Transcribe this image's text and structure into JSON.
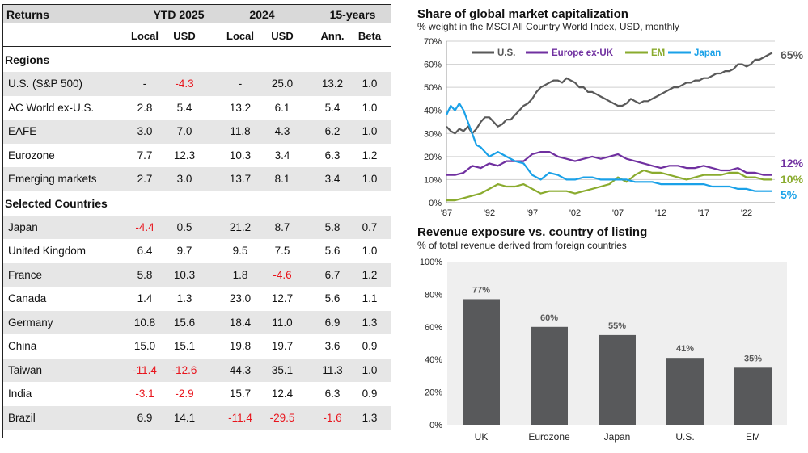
{
  "returns_table": {
    "header_title": "Returns",
    "groups": [
      "YTD 2025",
      "2024",
      "15-years"
    ],
    "subheaders": [
      "Local",
      "USD",
      "Local",
      "USD",
      "Ann.",
      "Beta"
    ],
    "sections": [
      {
        "title": "Regions",
        "rows": [
          {
            "name": "U.S. (S&P 500)",
            "values": [
              "-",
              "-4.3",
              "-",
              "25.0",
              "13.2",
              "1.0"
            ]
          },
          {
            "name": "AC World ex-U.S.",
            "values": [
              "2.8",
              "5.4",
              "13.2",
              "6.1",
              "5.4",
              "1.0"
            ]
          },
          {
            "name": "EAFE",
            "values": [
              "3.0",
              "7.0",
              "11.8",
              "4.3",
              "6.2",
              "1.0"
            ]
          },
          {
            "name": "Eurozone",
            "values": [
              "7.7",
              "12.3",
              "10.3",
              "3.4",
              "6.3",
              "1.2"
            ]
          },
          {
            "name": "Emerging markets",
            "values": [
              "2.7",
              "3.0",
              "13.7",
              "8.1",
              "3.4",
              "1.0"
            ]
          }
        ]
      },
      {
        "title": "Selected Countries",
        "rows": [
          {
            "name": "Japan",
            "values": [
              "-4.4",
              "0.5",
              "21.2",
              "8.7",
              "5.8",
              "0.7"
            ]
          },
          {
            "name": "United Kingdom",
            "values": [
              "6.4",
              "9.7",
              "9.5",
              "7.5",
              "5.6",
              "1.0"
            ]
          },
          {
            "name": "France",
            "values": [
              "5.8",
              "10.3",
              "1.8",
              "-4.6",
              "6.7",
              "1.2"
            ]
          },
          {
            "name": "Canada",
            "values": [
              "1.4",
              "1.3",
              "23.0",
              "12.7",
              "5.6",
              "1.1"
            ]
          },
          {
            "name": "Germany",
            "values": [
              "10.8",
              "15.6",
              "18.4",
              "11.0",
              "6.9",
              "1.3"
            ]
          },
          {
            "name": "China",
            "values": [
              "15.0",
              "15.1",
              "19.8",
              "19.7",
              "3.6",
              "0.9"
            ]
          },
          {
            "name": "Taiwan",
            "values": [
              "-11.4",
              "-12.6",
              "44.3",
              "35.1",
              "11.3",
              "1.0"
            ]
          },
          {
            "name": "India",
            "values": [
              "-3.1",
              "-2.9",
              "15.7",
              "12.4",
              "6.3",
              "0.9"
            ]
          },
          {
            "name": "Brazil",
            "values": [
              "6.9",
              "14.1",
              "-11.4",
              "-29.5",
              "-1.6",
              "1.3"
            ]
          }
        ]
      }
    ],
    "negative_color": "#e8141c",
    "shade_color": "#e6e6e6"
  },
  "chart_data": [
    {
      "type": "line",
      "title": "Share of global market capitalization",
      "subtitle": "% weight in the MSCI All Country World Index, USD, monthly",
      "x_tick_labels": [
        "'87",
        "'92",
        "'97",
        "'02",
        "'07",
        "'12",
        "'17",
        "'22"
      ],
      "x_ticks": [
        1987,
        1992,
        1997,
        2002,
        2007,
        2012,
        2017,
        2022
      ],
      "xlim": [
        1987,
        2025.3
      ],
      "ylim": [
        0,
        70
      ],
      "y_ticks": [
        0,
        10,
        20,
        30,
        40,
        50,
        60,
        70
      ],
      "y_tick_labels": [
        "0%",
        "10%",
        "20%",
        "30%",
        "40%",
        "50%",
        "60%",
        "70%"
      ],
      "grid": true,
      "legend_position": "top",
      "series": [
        {
          "name": "U.S.",
          "color": "#595959",
          "end_label": "65%",
          "x": [
            1987,
            1987.5,
            1988,
            1988.5,
            1989,
            1989.5,
            1990,
            1990.5,
            1991,
            1991.5,
            1992,
            1992.5,
            1993,
            1993.5,
            1994,
            1994.5,
            1995,
            1995.5,
            1996,
            1996.5,
            1997,
            1997.5,
            1998,
            1998.5,
            1999,
            1999.5,
            2000,
            2000.5,
            2001,
            2001.5,
            2002,
            2002.5,
            2003,
            2003.5,
            2004,
            2004.5,
            2005,
            2005.5,
            2006,
            2006.5,
            2007,
            2007.5,
            2008,
            2008.5,
            2009,
            2009.5,
            2010,
            2010.5,
            2011,
            2011.5,
            2012,
            2012.5,
            2013,
            2013.5,
            2014,
            2014.5,
            2015,
            2015.5,
            2016,
            2016.5,
            2017,
            2017.5,
            2018,
            2018.5,
            2019,
            2019.5,
            2020,
            2020.5,
            2021,
            2021.5,
            2022,
            2022.5,
            2023,
            2023.5,
            2024,
            2024.5,
            2025
          ],
          "y": [
            33,
            31,
            30,
            32,
            31,
            33,
            30,
            32,
            35,
            37,
            37,
            35,
            33,
            34,
            36,
            36,
            38,
            40,
            42,
            43,
            45,
            48,
            50,
            51,
            52,
            53,
            53,
            52,
            54,
            53,
            52,
            50,
            50,
            48,
            48,
            47,
            46,
            45,
            44,
            43,
            42,
            42,
            43,
            45,
            44,
            43,
            44,
            44,
            45,
            46,
            47,
            48,
            49,
            50,
            50,
            51,
            52,
            52,
            53,
            53,
            54,
            54,
            55,
            56,
            56,
            57,
            57,
            58,
            60,
            60,
            59,
            60,
            62,
            62,
            63,
            64,
            65
          ]
        },
        {
          "name": "Europe ex-UK",
          "color": "#7030a0",
          "end_label": "12%",
          "x": [
            1987,
            1988,
            1989,
            1990,
            1991,
            1992,
            1993,
            1994,
            1995,
            1996,
            1997,
            1998,
            1999,
            2000,
            2001,
            2002,
            2003,
            2004,
            2005,
            2006,
            2007,
            2008,
            2009,
            2010,
            2011,
            2012,
            2013,
            2014,
            2015,
            2016,
            2017,
            2018,
            2019,
            2020,
            2021,
            2022,
            2023,
            2024,
            2025
          ],
          "y": [
            12,
            12,
            13,
            16,
            15,
            17,
            16,
            18,
            18,
            18,
            21,
            22,
            22,
            20,
            19,
            18,
            19,
            20,
            19,
            20,
            21,
            19,
            18,
            17,
            16,
            15,
            16,
            16,
            15,
            15,
            16,
            15,
            14,
            14,
            15,
            13,
            13,
            12,
            12
          ]
        },
        {
          "name": "EM",
          "color": "#8aab2e",
          "end_label": "10%",
          "x": [
            1987,
            1988,
            1989,
            1990,
            1991,
            1992,
            1993,
            1994,
            1995,
            1996,
            1997,
            1998,
            1999,
            2000,
            2001,
            2002,
            2003,
            2004,
            2005,
            2006,
            2007,
            2008,
            2009,
            2010,
            2011,
            2012,
            2013,
            2014,
            2015,
            2016,
            2017,
            2018,
            2019,
            2020,
            2021,
            2022,
            2023,
            2024,
            2025
          ],
          "y": [
            1,
            1,
            2,
            3,
            4,
            6,
            8,
            7,
            7,
            8,
            6,
            4,
            5,
            5,
            5,
            4,
            5,
            6,
            7,
            8,
            11,
            9,
            12,
            14,
            13,
            13,
            12,
            11,
            10,
            11,
            12,
            12,
            12,
            13,
            13,
            11,
            11,
            10,
            10
          ]
        },
        {
          "name": "Japan",
          "color": "#1aa1e8",
          "end_label": "5%",
          "x": [
            1987,
            1987.5,
            1988,
            1988.5,
            1989,
            1989.5,
            1990,
            1990.5,
            1991,
            1992,
            1993,
            1994,
            1995,
            1996,
            1997,
            1998,
            1999,
            2000,
            2001,
            2002,
            2003,
            2004,
            2005,
            2006,
            2007,
            2008,
            2009,
            2010,
            2011,
            2012,
            2013,
            2014,
            2015,
            2016,
            2017,
            2018,
            2019,
            2020,
            2021,
            2022,
            2023,
            2024,
            2025
          ],
          "y": [
            38,
            42,
            40,
            43,
            40,
            35,
            30,
            25,
            24,
            20,
            22,
            20,
            18,
            17,
            12,
            10,
            13,
            12,
            10,
            10,
            11,
            11,
            10,
            10,
            10,
            10,
            9,
            9,
            9,
            8,
            8,
            8,
            8,
            8,
            8,
            7,
            7,
            7,
            6,
            6,
            5,
            5,
            5
          ]
        }
      ]
    },
    {
      "type": "bar",
      "title": "Revenue exposure vs. country of listing",
      "subtitle": "% of total revenue derived from foreign countries",
      "categories": [
        "UK",
        "Eurozone",
        "Japan",
        "U.S.",
        "EM"
      ],
      "values": [
        77,
        60,
        55,
        41,
        35
      ],
      "data_labels": [
        "77%",
        "60%",
        "55%",
        "41%",
        "35%"
      ],
      "ylim": [
        0,
        100
      ],
      "y_ticks": [
        0,
        20,
        40,
        60,
        80,
        100
      ],
      "y_tick_labels": [
        "0%",
        "20%",
        "40%",
        "60%",
        "80%",
        "100%"
      ],
      "bar_color": "#58595b",
      "plot_background": "#efefef",
      "grid": false
    }
  ]
}
